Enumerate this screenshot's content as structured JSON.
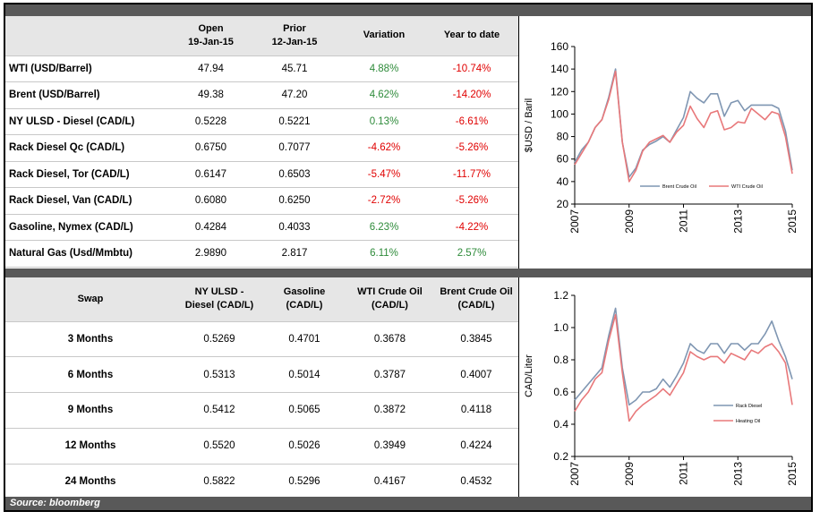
{
  "prices": {
    "headers": {
      "open": "Open",
      "open_date": "19-Jan-15",
      "prior": "Prior",
      "prior_date": "12-Jan-15",
      "variation": "Variation",
      "ytd": "Year to date"
    },
    "rows": [
      {
        "label": "WTI (USD/Barrel)",
        "open": "47.94",
        "prior": "45.71",
        "variation": "4.88%",
        "ytd": "-10.74%",
        "var_sign": "pos",
        "ytd_sign": "neg"
      },
      {
        "label": "Brent (USD/Barrel)",
        "open": "49.38",
        "prior": "47.20",
        "variation": "4.62%",
        "ytd": "-14.20%",
        "var_sign": "pos",
        "ytd_sign": "neg"
      },
      {
        "label": "NY ULSD - Diesel (CAD/L)",
        "open": "0.5228",
        "prior": "0.5221",
        "variation": "0.13%",
        "ytd": "-6.61%",
        "var_sign": "pos",
        "ytd_sign": "neg"
      },
      {
        "label": "Rack Diesel Qc (CAD/L)",
        "open": "0.6750",
        "prior": "0.7077",
        "variation": "-4.62%",
        "ytd": "-5.26%",
        "var_sign": "neg",
        "ytd_sign": "neg"
      },
      {
        "label": "Rack Diesel, Tor (CAD/L)",
        "open": "0.6147",
        "prior": "0.6503",
        "variation": "-5.47%",
        "ytd": "-11.77%",
        "var_sign": "neg",
        "ytd_sign": "neg"
      },
      {
        "label": "Rack Diesel, Van (CAD/L)",
        "open": "0.6080",
        "prior": "0.6250",
        "variation": "-2.72%",
        "ytd": "-5.26%",
        "var_sign": "neg",
        "ytd_sign": "neg"
      },
      {
        "label": "Gasoline, Nymex (CAD/L)",
        "open": "0.4284",
        "prior": "0.4033",
        "variation": "6.23%",
        "ytd": "-4.22%",
        "var_sign": "pos",
        "ytd_sign": "neg"
      },
      {
        "label": "Natural Gas (Usd/Mmbtu)",
        "open": "2.9890",
        "prior": "2.817",
        "variation": "6.11%",
        "ytd": "2.57%",
        "var_sign": "pos",
        "ytd_sign": "pos"
      }
    ]
  },
  "swaps": {
    "headers": {
      "swap": "Swap",
      "ulsd_1": "NY ULSD -",
      "ulsd_2": "Diesel (CAD/L)",
      "gas_1": "Gasoline",
      "gas_2": "(CAD/L)",
      "wti_1": "WTI Crude Oil",
      "wti_2": "(CAD/L)",
      "brent_1": "Brent Crude Oil",
      "brent_2": "(CAD/L)"
    },
    "rows": [
      {
        "term": "3 Months",
        "ulsd": "0.5269",
        "gasoline": "0.4701",
        "wti": "0.3678",
        "brent": "0.3845"
      },
      {
        "term": "6 Months",
        "ulsd": "0.5313",
        "gasoline": "0.5014",
        "wti": "0.3787",
        "brent": "0.4007"
      },
      {
        "term": "9 Months",
        "ulsd": "0.5412",
        "gasoline": "0.5065",
        "wti": "0.3872",
        "brent": "0.4118"
      },
      {
        "term": "12 Months",
        "ulsd": "0.5520",
        "gasoline": "0.5026",
        "wti": "0.3949",
        "brent": "0.4224"
      },
      {
        "term": "24 Months",
        "ulsd": "0.5822",
        "gasoline": "0.5296",
        "wti": "0.4167",
        "brent": "0.4532"
      }
    ]
  },
  "source": "Source: bloomberg",
  "colors": {
    "series_a": "#7f96b2",
    "series_b": "#e8787a",
    "positive": "#2e8b3a",
    "negative": "#e00000",
    "bar": "#595959"
  },
  "chart_data": [
    {
      "type": "line",
      "ylabel": "$USD / Baril",
      "ylim": [
        20,
        160
      ],
      "yticks": [
        20,
        40,
        60,
        80,
        100,
        120,
        140,
        160
      ],
      "xlim": [
        2007,
        2015
      ],
      "xticks": [
        2007,
        2009,
        2011,
        2013,
        2015
      ],
      "legend_placement": "bottom-right",
      "grid": false,
      "x": [
        2007.0,
        2007.25,
        2007.5,
        2007.75,
        2008.0,
        2008.25,
        2008.5,
        2008.75,
        2009.0,
        2009.25,
        2009.5,
        2009.75,
        2010.0,
        2010.25,
        2010.5,
        2010.75,
        2011.0,
        2011.25,
        2011.5,
        2011.75,
        2012.0,
        2012.25,
        2012.5,
        2012.75,
        2013.0,
        2013.25,
        2013.5,
        2013.75,
        2014.0,
        2014.25,
        2014.5,
        2014.75,
        2015.0
      ],
      "series": [
        {
          "name": "Brent Crude Oil",
          "color": "#7f96b2",
          "values": [
            57,
            68,
            75,
            88,
            95,
            115,
            140,
            75,
            44,
            52,
            68,
            73,
            76,
            80,
            75,
            86,
            97,
            120,
            114,
            110,
            118,
            118,
            98,
            110,
            112,
            103,
            108,
            108,
            108,
            108,
            105,
            85,
            50
          ]
        },
        {
          "name": "WTI Crude Oil",
          "color": "#e8787a",
          "values": [
            55,
            65,
            75,
            88,
            95,
            113,
            138,
            75,
            40,
            50,
            67,
            75,
            78,
            81,
            75,
            84,
            90,
            107,
            96,
            88,
            101,
            103,
            86,
            88,
            93,
            92,
            105,
            100,
            95,
            102,
            100,
            80,
            47
          ]
        }
      ]
    },
    {
      "type": "line",
      "ylabel": "CAD/Liter",
      "ylim": [
        0.2,
        1.2
      ],
      "yticks": [
        0.2,
        0.4,
        0.6,
        0.8,
        1.0,
        1.2
      ],
      "xlim": [
        2007,
        2015
      ],
      "xticks": [
        2007,
        2009,
        2011,
        2013,
        2015
      ],
      "legend_placement": "bottom-right",
      "grid": false,
      "x": [
        2007.0,
        2007.25,
        2007.5,
        2007.75,
        2008.0,
        2008.25,
        2008.5,
        2008.75,
        2009.0,
        2009.25,
        2009.5,
        2009.75,
        2010.0,
        2010.25,
        2010.5,
        2010.75,
        2011.0,
        2011.25,
        2011.5,
        2011.75,
        2012.0,
        2012.25,
        2012.5,
        2012.75,
        2013.0,
        2013.25,
        2013.5,
        2013.75,
        2014.0,
        2014.25,
        2014.5,
        2014.75,
        2015.0
      ],
      "series": [
        {
          "name": "Rack Diesel",
          "color": "#7f96b2",
          "values": [
            0.55,
            0.6,
            0.65,
            0.7,
            0.75,
            0.95,
            1.12,
            0.75,
            0.52,
            0.55,
            0.6,
            0.6,
            0.62,
            0.68,
            0.63,
            0.7,
            0.78,
            0.9,
            0.86,
            0.84,
            0.9,
            0.9,
            0.84,
            0.9,
            0.9,
            0.86,
            0.9,
            0.9,
            0.96,
            1.04,
            0.92,
            0.82,
            0.68
          ]
        },
        {
          "name": "Heating Oil",
          "color": "#e8787a",
          "values": [
            0.48,
            0.55,
            0.6,
            0.68,
            0.72,
            0.92,
            1.08,
            0.72,
            0.42,
            0.48,
            0.52,
            0.55,
            0.58,
            0.62,
            0.58,
            0.65,
            0.72,
            0.85,
            0.82,
            0.8,
            0.82,
            0.82,
            0.78,
            0.84,
            0.82,
            0.8,
            0.86,
            0.84,
            0.88,
            0.9,
            0.85,
            0.78,
            0.52
          ]
        }
      ]
    }
  ]
}
